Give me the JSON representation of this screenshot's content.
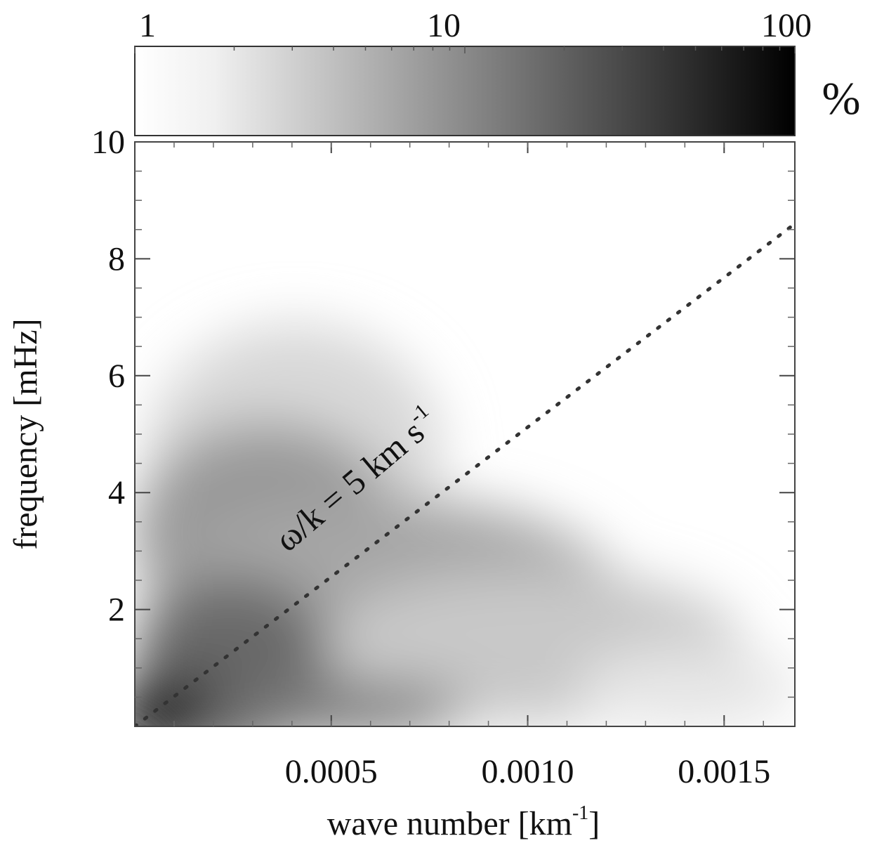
{
  "chart_data": {
    "type": "heatmap",
    "title": "",
    "xlabel": "wave number [km",
    "xlabel_sup": "-1",
    "xlabel_tail": "]",
    "ylabel": "frequency [mHz]",
    "xlim": [
      0.0,
      0.00168
    ],
    "ylim": [
      0,
      10
    ],
    "x_ticks": [
      {
        "value": 0.0005,
        "label": "0.0005"
      },
      {
        "value": 0.001,
        "label": "0.0010"
      },
      {
        "value": 0.0015,
        "label": "0.0015"
      }
    ],
    "y_ticks": [
      {
        "value": 2,
        "label": "2"
      },
      {
        "value": 4,
        "label": "4"
      },
      {
        "value": 6,
        "label": "6"
      },
      {
        "value": 8,
        "label": "8"
      },
      {
        "value": 10,
        "label": "10"
      }
    ],
    "colorbar": {
      "scale": "log",
      "range": [
        1,
        100
      ],
      "ticks": [
        {
          "value": 1,
          "label": "1"
        },
        {
          "value": 10,
          "label": "10"
        },
        {
          "value": 100,
          "label": "100"
        }
      ],
      "unit_label": "%",
      "colormap": [
        "#ffffff",
        "#000000"
      ]
    },
    "annotation": {
      "text": "ω/k = 5 km s",
      "sup": "-1",
      "phase_speed_km_s": 5
    },
    "reference_line": {
      "style": "dotted",
      "x": [
        0.0,
        0.00168
      ],
      "y": [
        0.0,
        8.6
      ]
    },
    "grid": false
  }
}
